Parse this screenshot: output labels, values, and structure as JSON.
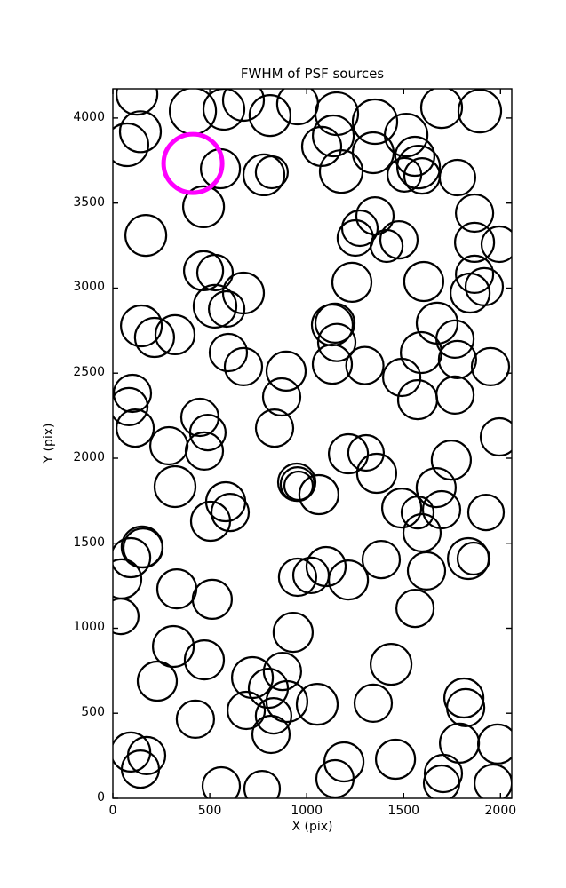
{
  "colors": {
    "background": "#ffffff",
    "axis": "#000000",
    "source_stroke": "#000000",
    "highlight_stroke": "#ff00ff"
  },
  "chart_data": {
    "type": "scatter",
    "title": "FWHM of PSF sources",
    "xlabel": "X (pix)",
    "ylabel": "Y (pix)",
    "xlim": [
      0,
      2058
    ],
    "ylim": [
      0,
      4172
    ],
    "xticks": [
      0,
      500,
      1000,
      1500,
      2000
    ],
    "yticks": [
      0,
      500,
      1000,
      1500,
      2000,
      2500,
      3000,
      3500,
      4000
    ],
    "grid": false,
    "legend": null,
    "marker": "open-circle",
    "radius_units": "screen-pixels",
    "sources": [
      [
        124,
        4140,
        23
      ],
      [
        142,
        3920,
        23
      ],
      [
        73,
        3843,
        24
      ],
      [
        413,
        4041,
        26
      ],
      [
        573,
        4052,
        23
      ],
      [
        674,
        4104,
        23
      ],
      [
        811,
        4015,
        23
      ],
      [
        953,
        4083,
        23
      ],
      [
        555,
        3702,
        22
      ],
      [
        779,
        3666,
        23
      ],
      [
        820,
        3681,
        18
      ],
      [
        468,
        3478,
        23
      ],
      [
        170,
        3310,
        23
      ],
      [
        468,
        3102,
        22
      ],
      [
        527,
        3091,
        20
      ],
      [
        1155,
        4026,
        24
      ],
      [
        1137,
        3895,
        23
      ],
      [
        1077,
        3833,
        22
      ],
      [
        1352,
        3979,
        25
      ],
      [
        1343,
        3796,
        23
      ],
      [
        1178,
        3686,
        24
      ],
      [
        1513,
        3900,
        24
      ],
      [
        1696,
        4062,
        23
      ],
      [
        1893,
        4041,
        24
      ],
      [
        1558,
        3775,
        22
      ],
      [
        1577,
        3712,
        24
      ],
      [
        1504,
        3666,
        19
      ],
      [
        1595,
        3660,
        20
      ],
      [
        1778,
        3650,
        20
      ],
      [
        1866,
        3441,
        21
      ],
      [
        1866,
        3269,
        22
      ],
      [
        1994,
        3258,
        20
      ],
      [
        1352,
        3425,
        21
      ],
      [
        1274,
        3352,
        20
      ],
      [
        1251,
        3295,
        20
      ],
      [
        1476,
        3284,
        21
      ],
      [
        1412,
        3248,
        18
      ],
      [
        1233,
        3034,
        22
      ],
      [
        1604,
        3039,
        22
      ],
      [
        1866,
        3081,
        21
      ],
      [
        674,
        2971,
        23
      ],
      [
        527,
        2893,
        24
      ],
      [
        587,
        2877,
        20
      ],
      [
        147,
        2778,
        23
      ],
      [
        215,
        2710,
        22
      ],
      [
        321,
        2726,
        22
      ],
      [
        596,
        2621,
        21
      ],
      [
        674,
        2538,
        21
      ],
      [
        894,
        2512,
        22
      ],
      [
        871,
        2360,
        21
      ],
      [
        101,
        2381,
        21
      ],
      [
        83,
        2303,
        21
      ],
      [
        115,
        2177,
        21
      ],
      [
        449,
        2240,
        21
      ],
      [
        490,
        2151,
        20
      ],
      [
        289,
        2073,
        21
      ],
      [
        472,
        2042,
        21
      ],
      [
        834,
        2177,
        21
      ],
      [
        1843,
        2971,
        22
      ],
      [
        1916,
        3008,
        21
      ],
      [
        1132,
        2783,
        23
      ],
      [
        1146,
        2794,
        22
      ],
      [
        1155,
        2680,
        21
      ],
      [
        1132,
        2553,
        22
      ],
      [
        1300,
        2545,
        21
      ],
      [
        1673,
        2794,
        23
      ],
      [
        1765,
        2700,
        21
      ],
      [
        1591,
        2621,
        23
      ],
      [
        1778,
        2580,
        21
      ],
      [
        1948,
        2538,
        21
      ],
      [
        1490,
        2475,
        21
      ],
      [
        1765,
        2371,
        21
      ],
      [
        1572,
        2344,
        22
      ],
      [
        1994,
        2125,
        21
      ],
      [
        321,
        1833,
        23
      ],
      [
        582,
        1744,
        22
      ],
      [
        605,
        1681,
        21
      ],
      [
        504,
        1629,
        22
      ],
      [
        151,
        1478,
        23
      ],
      [
        156,
        1472,
        22
      ],
      [
        92,
        1415,
        22
      ],
      [
        46,
        1290,
        22
      ],
      [
        330,
        1232,
        22
      ],
      [
        513,
        1170,
        22
      ],
      [
        41,
        1070,
        20
      ],
      [
        949,
        1859,
        21
      ],
      [
        953,
        1848,
        19
      ],
      [
        958,
        1838,
        16
      ],
      [
        953,
        1300,
        21
      ],
      [
        1022,
        1311,
        20
      ],
      [
        1100,
        1363,
        22
      ],
      [
        1215,
        2026,
        22
      ],
      [
        1306,
        2031,
        20
      ],
      [
        1361,
        1911,
        22
      ],
      [
        1063,
        1786,
        22
      ],
      [
        1668,
        1827,
        22
      ],
      [
        1490,
        1707,
        22
      ],
      [
        1572,
        1681,
        18
      ],
      [
        1696,
        1697,
        21
      ],
      [
        1595,
        1561,
        21
      ],
      [
        1746,
        1989,
        22
      ],
      [
        1925,
        1681,
        20
      ],
      [
        1384,
        1404,
        21
      ],
      [
        1618,
        1337,
        21
      ],
      [
        1834,
        1410,
        23
      ],
      [
        1861,
        1410,
        18
      ],
      [
        1215,
        1284,
        22
      ],
      [
        1559,
        1117,
        21
      ],
      [
        312,
        893,
        23
      ],
      [
        472,
        814,
        22
      ],
      [
        229,
        689,
        22
      ],
      [
        720,
        710,
        23
      ],
      [
        688,
        517,
        21
      ],
      [
        930,
        976,
        22
      ],
      [
        875,
        746,
        21
      ],
      [
        802,
        647,
        22
      ],
      [
        898,
        569,
        23
      ],
      [
        829,
        485,
        20
      ],
      [
        816,
        376,
        21
      ],
      [
        426,
        465,
        21
      ],
      [
        92,
        272,
        22
      ],
      [
        174,
        251,
        21
      ],
      [
        142,
        172,
        21
      ],
      [
        559,
        73,
        21
      ],
      [
        770,
        57,
        20
      ],
      [
        1435,
        788,
        23
      ],
      [
        1343,
        559,
        21
      ],
      [
        1054,
        553,
        23
      ],
      [
        1811,
        590,
        22
      ],
      [
        1820,
        533,
        21
      ],
      [
        1788,
        324,
        22
      ],
      [
        1985,
        319,
        22
      ],
      [
        1192,
        214,
        22
      ],
      [
        1146,
        115,
        21
      ],
      [
        1458,
        230,
        22
      ],
      [
        1705,
        146,
        21
      ],
      [
        1696,
        89,
        20
      ],
      [
        1962,
        89,
        21
      ]
    ],
    "highlighted_source": {
      "x": 413,
      "y": 3733,
      "r": 33,
      "color": "#ff00ff"
    }
  }
}
